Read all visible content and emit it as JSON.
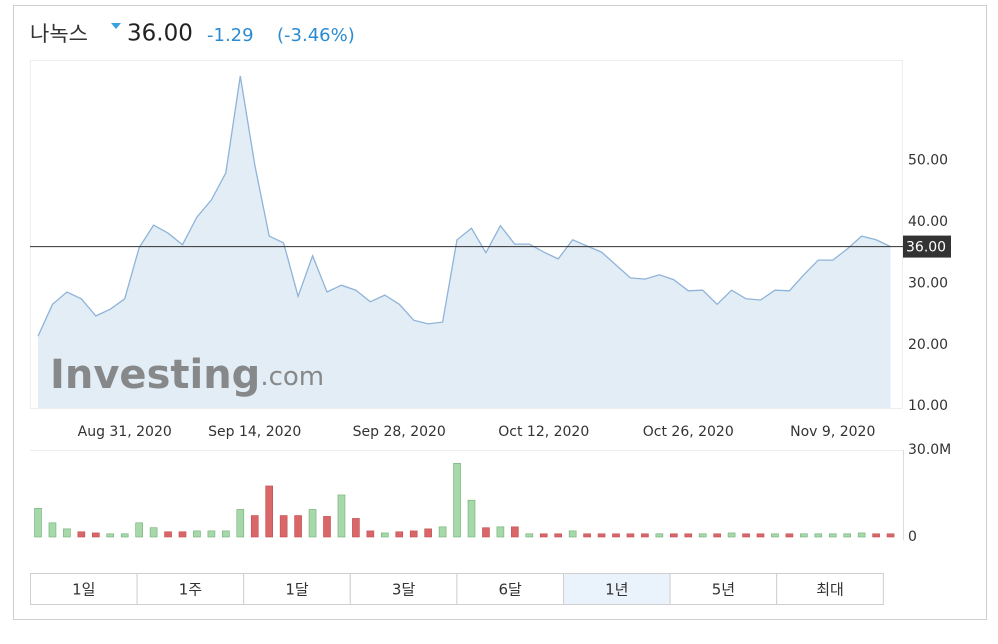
{
  "header": {
    "name": "나녹스",
    "price": "36.00",
    "change": "-1.29",
    "change_pct": "(-3.46%)"
  },
  "watermark": {
    "brand": "Investing",
    "suffix": ".com"
  },
  "periods": {
    "options": [
      "1일",
      "1주",
      "1달",
      "3달",
      "6달",
      "1년",
      "5년",
      "최대"
    ],
    "selected": "1년"
  },
  "chart_data": [
    {
      "type": "area",
      "color": "#8fb4d8",
      "fill": "#e3edf6",
      "categories": [
        null,
        null,
        null,
        null,
        null,
        null,
        "Aug 31, 2020",
        null,
        null,
        null,
        null,
        null,
        null,
        null,
        null,
        "Sep 14, 2020",
        null,
        null,
        null,
        null,
        null,
        null,
        null,
        null,
        null,
        "Sep 28, 2020",
        null,
        null,
        null,
        null,
        null,
        null,
        null,
        null,
        null,
        "Oct 12, 2020",
        null,
        null,
        null,
        null,
        null,
        null,
        null,
        null,
        null,
        "Oct 26, 2020",
        null,
        null,
        null,
        null,
        null,
        null,
        null,
        null,
        null,
        "Nov 9, 2020",
        null,
        null,
        null,
        null
      ],
      "values": [
        21.4,
        26.6,
        28.6,
        27.5,
        24.7,
        25.8,
        27.5,
        35.8,
        39.5,
        38.2,
        36.3,
        40.8,
        43.6,
        48.0,
        63.8,
        49.3,
        37.7,
        36.6,
        27.9,
        34.5,
        28.6,
        29.7,
        28.9,
        27.0,
        28.1,
        26.6,
        24.0,
        23.4,
        23.7,
        37.1,
        39.0,
        35.0,
        39.4,
        36.4,
        36.4,
        35.1,
        34.0,
        37.1,
        36.1,
        35.1,
        33.0,
        30.9,
        30.7,
        31.4,
        30.6,
        28.8,
        28.9,
        26.6,
        28.9,
        27.5,
        27.3,
        28.9,
        28.8,
        31.4,
        33.8,
        33.8,
        35.6,
        37.7,
        37.1,
        36.0
      ],
      "ylim": [
        9.7,
        66.4
      ],
      "yticks": [
        {
          "value": 10,
          "label": "10.00"
        },
        {
          "value": 20,
          "label": "20.00"
        },
        {
          "value": 30,
          "label": "30.00"
        },
        {
          "value": 40,
          "label": "40.00"
        },
        {
          "value": 50,
          "label": "50.00"
        }
      ],
      "price_line": {
        "value": 36,
        "label": "36.00"
      }
    },
    {
      "type": "bar",
      "up_color": "#a6d8a9",
      "down_color": "#d9676a",
      "values": [
        9.9,
        4.9,
        2.8,
        1.8,
        1.4,
        1.1,
        1.1,
        4.9,
        3.2,
        1.8,
        1.8,
        2.1,
        2.1,
        2.1,
        9.5,
        7.4,
        17.6,
        7.4,
        7.4,
        9.5,
        7.1,
        14.5,
        6.4,
        2.1,
        1.4,
        1.8,
        2.1,
        2.8,
        3.5,
        25.4,
        12.7,
        3.2,
        3.5,
        3.5,
        1.1,
        1.1,
        1.1,
        2.1,
        1.1,
        1.1,
        1.1,
        1.1,
        1.1,
        1.1,
        1.1,
        1.1,
        1.1,
        1.1,
        1.4,
        1.1,
        1.1,
        1.1,
        1.1,
        1.1,
        1.1,
        1.1,
        1.1,
        1.4,
        1.1,
        1.1
      ],
      "ylim": [
        0,
        30
      ],
      "yticks": [
        0,
        {
          "value": 30,
          "label": "30.0M"
        }
      ]
    }
  ]
}
